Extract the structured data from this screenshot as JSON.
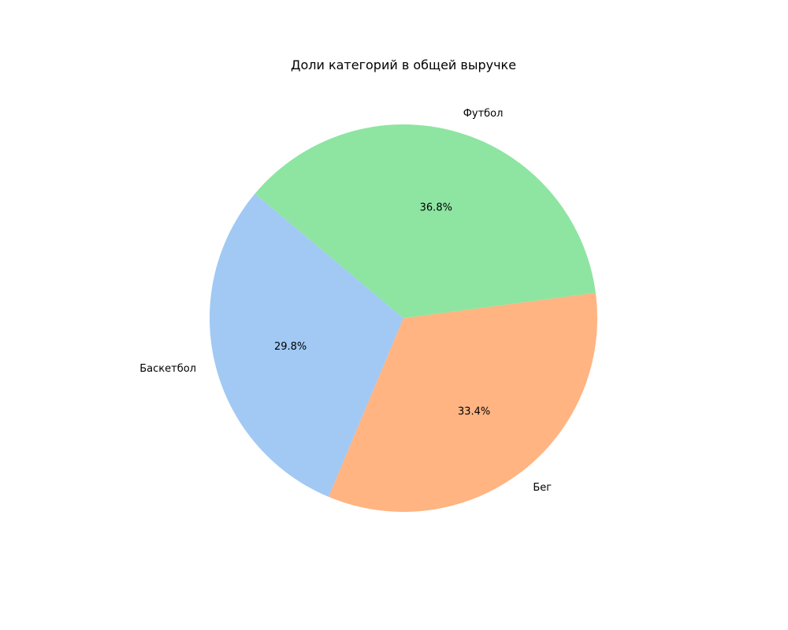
{
  "chart_data": {
    "type": "pie",
    "title": "Доли категорий в общей выручке",
    "slices": [
      {
        "label": "Баскетбол",
        "value": 29.8,
        "pct_label": "29.8%",
        "color": "#a1c9f4"
      },
      {
        "label": "Бег",
        "value": 33.4,
        "pct_label": "33.4%",
        "color": "#ffb482"
      },
      {
        "label": "Футбол",
        "value": 36.8,
        "pct_label": "36.8%",
        "color": "#8de5a1"
      }
    ],
    "start_angle_deg": 140,
    "direction": "counterclockwise"
  }
}
